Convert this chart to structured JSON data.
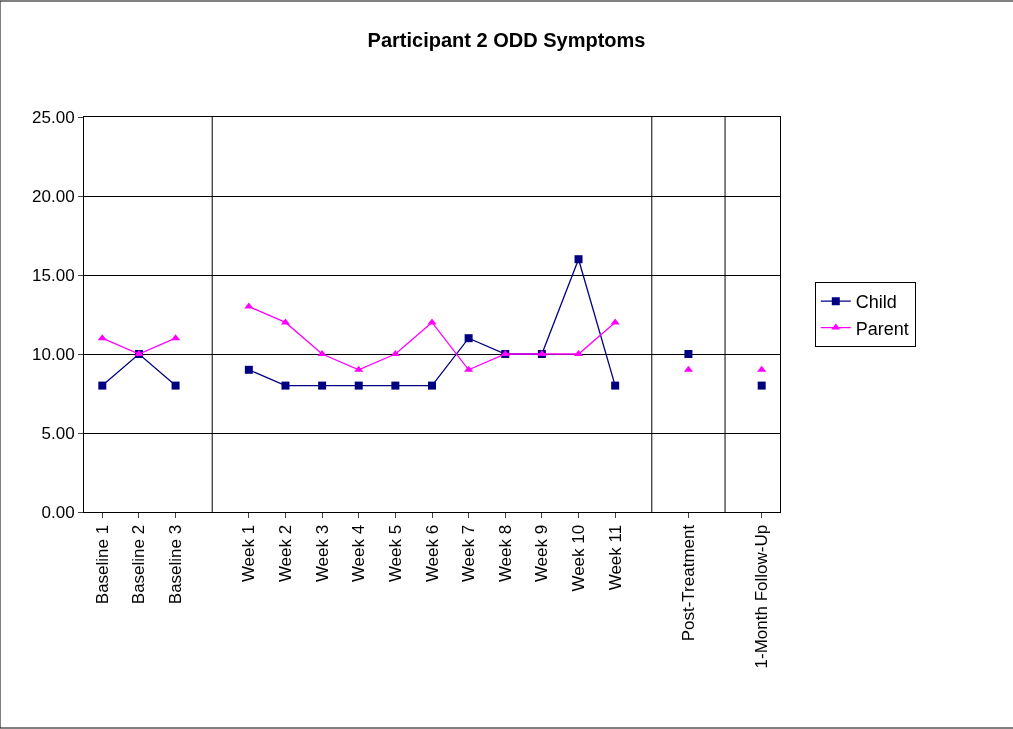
{
  "chart_data": {
    "type": "line",
    "title": "Participant 2 ODD Symptoms",
    "categories": [
      "Baseline 1",
      "Baseline 2",
      "Baseline 3",
      null,
      "Week 1",
      "Week 2",
      "Week 3",
      "Week 4",
      "Week 5",
      "Week 6",
      "Week 7",
      "Week 8",
      "Week 9",
      "Week 10",
      "Week 11",
      null,
      "Post-Treatment",
      null,
      "1-Month Follow-Up"
    ],
    "series": [
      {
        "name": "Child",
        "color": "#000080",
        "marker": "square",
        "values": [
          8,
          10,
          8,
          null,
          9,
          8,
          8,
          8,
          8,
          8,
          11,
          10,
          10,
          16,
          8,
          null,
          10,
          null,
          8
        ]
      },
      {
        "name": "Parent",
        "color": "#ff00ff",
        "marker": "triangle",
        "values": [
          11,
          10,
          11,
          null,
          13,
          12,
          10,
          9,
          10,
          12,
          9,
          10,
          10,
          10,
          12,
          null,
          9,
          null,
          9
        ]
      }
    ],
    "ylim": [
      0,
      25
    ],
    "yticks": [
      {
        "value": 0,
        "label": "0.00"
      },
      {
        "value": 5,
        "label": "5.00"
      },
      {
        "value": 10,
        "label": "10.00"
      },
      {
        "value": 15,
        "label": "15.00"
      },
      {
        "value": 20,
        "label": "20.00"
      },
      {
        "value": 25,
        "label": "25.00"
      }
    ],
    "grid": true,
    "legend": "right",
    "line_style": "solid"
  }
}
